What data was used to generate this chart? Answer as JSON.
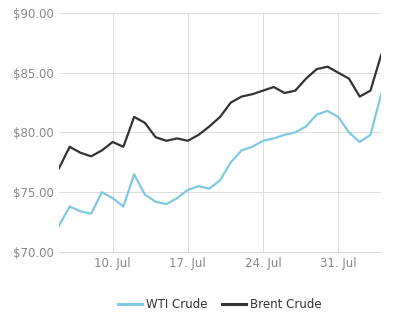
{
  "wti": [
    72.2,
    73.8,
    73.4,
    73.2,
    75.0,
    74.5,
    73.8,
    76.5,
    74.8,
    74.2,
    74.0,
    74.5,
    75.2,
    75.5,
    75.3,
    76.0,
    77.5,
    78.5,
    78.8,
    79.3,
    79.5,
    79.8,
    80.0,
    80.5,
    81.5,
    81.8,
    81.3,
    80.0,
    79.2,
    79.8,
    83.2
  ],
  "brent": [
    77.0,
    78.8,
    78.3,
    78.0,
    78.5,
    79.2,
    78.8,
    81.3,
    80.8,
    79.6,
    79.3,
    79.5,
    79.3,
    79.8,
    80.5,
    81.3,
    82.5,
    83.0,
    83.2,
    83.5,
    83.8,
    83.3,
    83.5,
    84.5,
    85.3,
    85.5,
    85.0,
    84.5,
    83.0,
    83.5,
    86.5
  ],
  "x_ticks": [
    5,
    12,
    19,
    26
  ],
  "x_tick_labels": [
    "10. Jul",
    "17. Jul",
    "24. Jul",
    "31. Jul"
  ],
  "ylim": [
    70.0,
    90.0
  ],
  "y_ticks": [
    70.0,
    75.0,
    80.0,
    85.0,
    90.0
  ],
  "wti_color": "#7ec8e3",
  "brent_color": "#333333",
  "bg_color": "#ffffff",
  "grid_color": "#d8d8d8",
  "wti_label": "WTI Crude",
  "brent_label": "Brent Crude",
  "line_width": 1.6,
  "tick_color": "#888888",
  "tick_fontsize": 8.5
}
